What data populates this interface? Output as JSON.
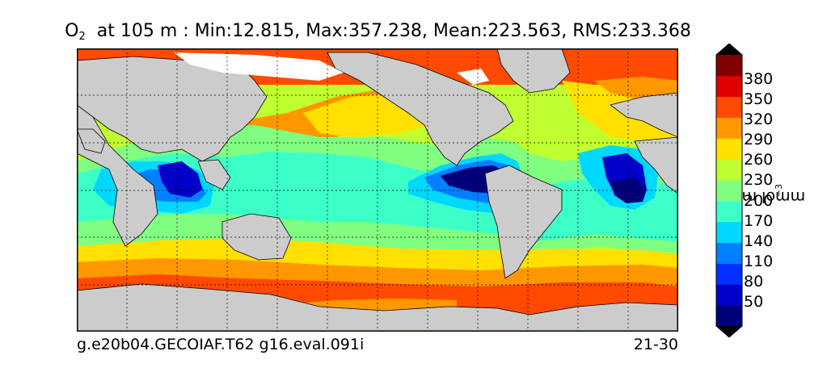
{
  "title": {
    "variable": "O",
    "variable_subscript": "2",
    "text": "at 105 m : Min:12.815, Max:357.238, Mean:223.563, RMS:233.368"
  },
  "colorbar": {
    "units_label": "mmol m",
    "units_exponent": "−3",
    "ticks": [
      "50",
      "80",
      "110",
      "140",
      "170",
      "200",
      "230",
      "260",
      "290",
      "320",
      "350",
      "380"
    ],
    "colors": [
      "#00007a",
      "#0000c8",
      "#0030ff",
      "#0080ff",
      "#00d8ff",
      "#3cffc8",
      "#80ff80",
      "#c0ff30",
      "#ffe000",
      "#ff9800",
      "#ff4a00",
      "#e00000",
      "#800000"
    ],
    "extend": "both"
  },
  "map": {
    "land_color": "#cccccc",
    "ice_color": "#ffffff",
    "gridlines": "dotted",
    "projection": "global cylindrical, Pacific-centred"
  },
  "captions": {
    "left": "g.e20b04.GECOIAF.T62 g16.eval.091i",
    "right": "21-30"
  }
}
